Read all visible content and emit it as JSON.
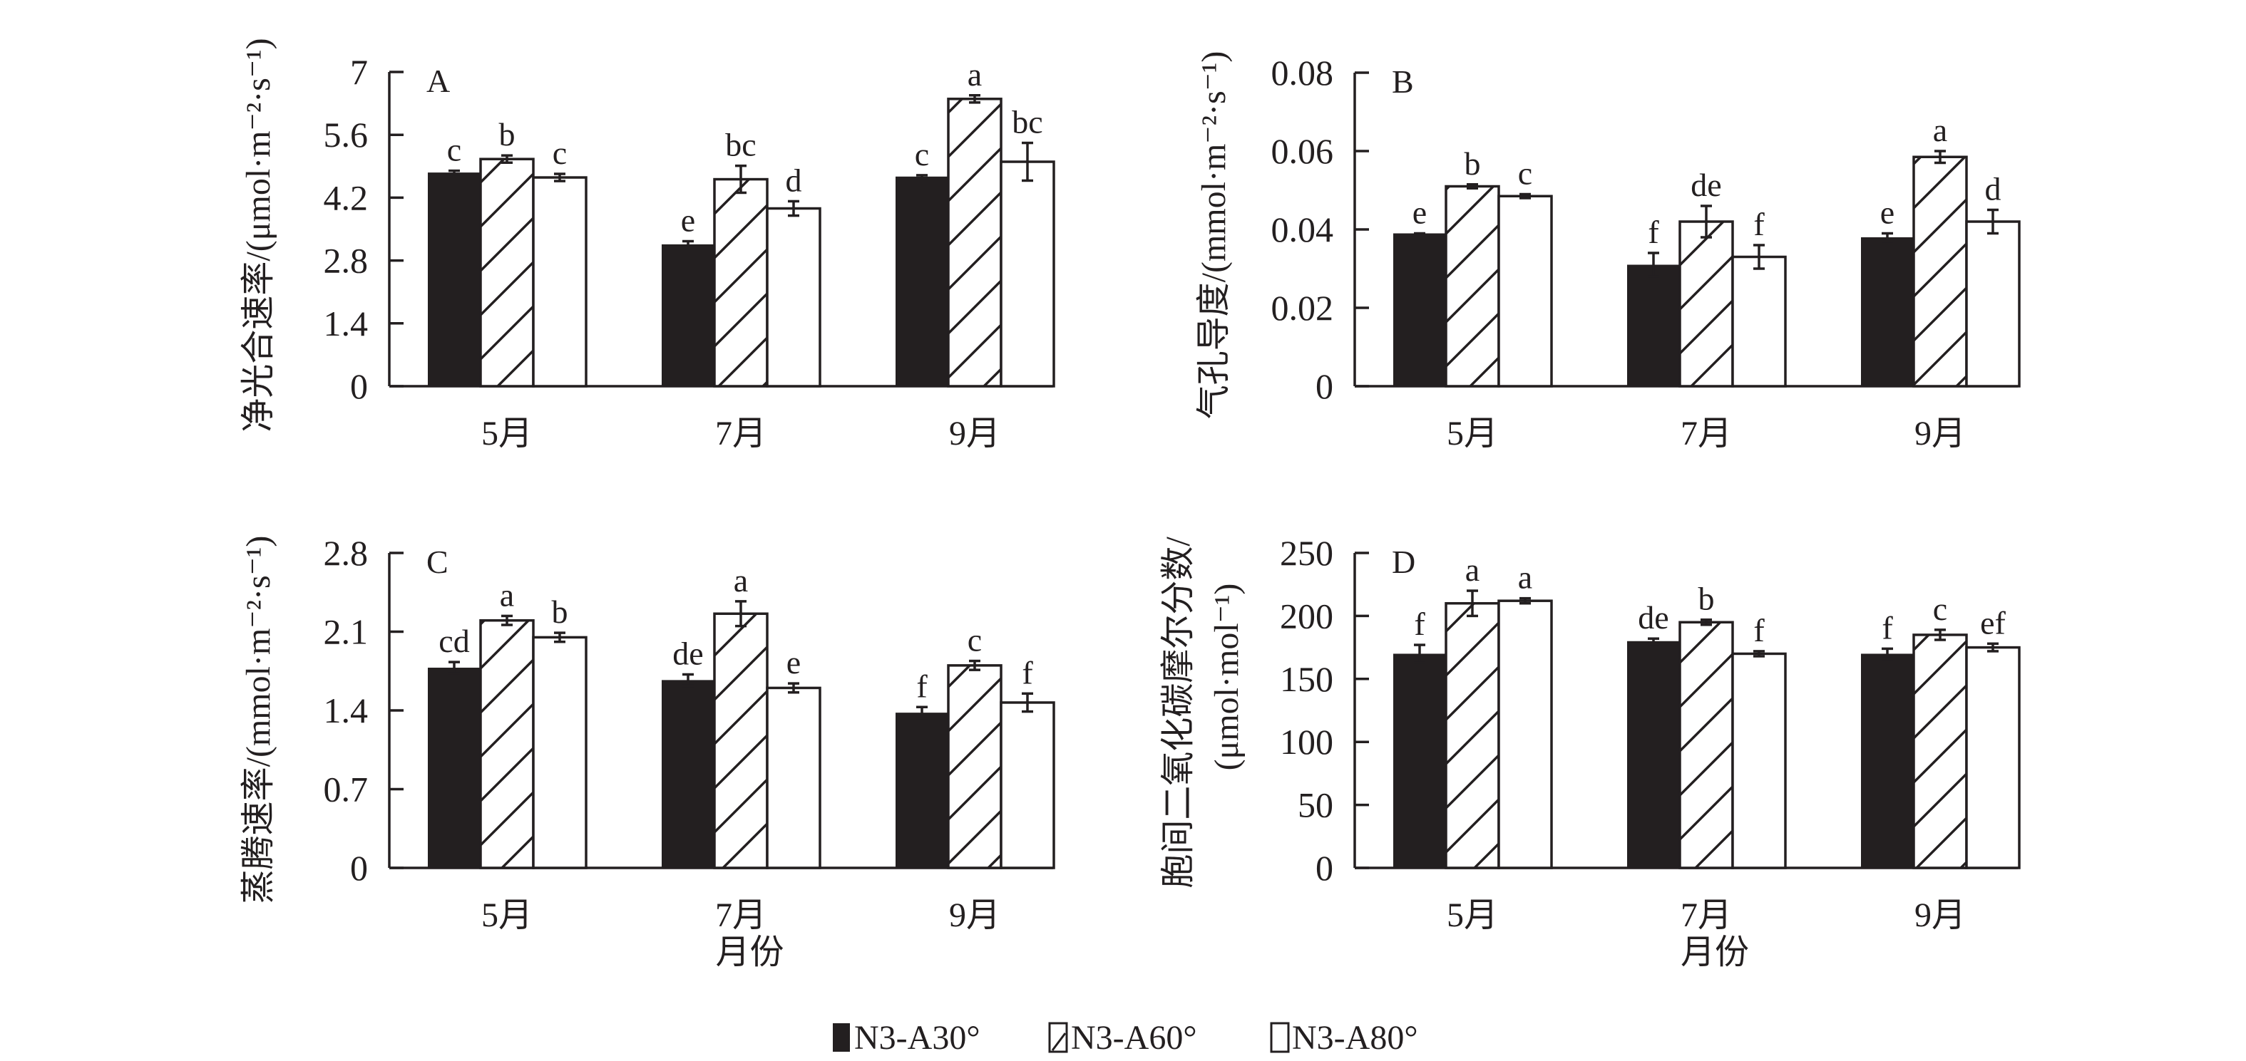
{
  "legend": {
    "items": [
      {
        "label": "N3-A30°",
        "fill": "solid"
      },
      {
        "label": "N3-A60°",
        "fill": "hatch"
      },
      {
        "label": "N3-A80°",
        "fill": "empty"
      }
    ]
  },
  "colors": {
    "ink": "#231f20",
    "background": "#ffffff"
  },
  "chart_data": [
    {
      "type": "bar",
      "panel": "A",
      "categories": [
        "5月",
        "7月",
        "9月"
      ],
      "ylabel": "净光合速率/(μmol·m⁻²·s⁻¹)",
      "xlabel": "",
      "ylim": [
        0,
        7
      ],
      "yticks": [
        "0",
        "1.4",
        "2.8",
        "4.2",
        "5.6",
        "7"
      ],
      "ytick_values": [
        0,
        1.4,
        2.8,
        4.2,
        5.6,
        7
      ],
      "series": [
        {
          "name": "N3-A30°",
          "values": [
            4.76,
            3.16,
            4.67
          ],
          "errors": [
            0.04,
            0.07,
            0.03
          ],
          "sig": [
            "c",
            "e",
            "c"
          ]
        },
        {
          "name": "N3-A60°",
          "values": [
            5.06,
            4.61,
            6.4
          ],
          "errors": [
            0.08,
            0.3,
            0.08
          ],
          "sig": [
            "b",
            "bc",
            "a"
          ]
        },
        {
          "name": "N3-A80°",
          "values": [
            4.65,
            3.96,
            5.0
          ],
          "errors": [
            0.08,
            0.16,
            0.42
          ],
          "sig": [
            "c",
            "d",
            "bc"
          ]
        }
      ]
    },
    {
      "type": "bar",
      "panel": "B",
      "categories": [
        "5月",
        "7月",
        "9月"
      ],
      "ylabel": "气孔导度/(mmol·m⁻²·s⁻¹)",
      "xlabel": "",
      "ylim": [
        0,
        0.08
      ],
      "yticks": [
        "0",
        "0.02",
        "0.04",
        "0.06",
        "0.08"
      ],
      "ytick_values": [
        0,
        0.02,
        0.04,
        0.06,
        0.08
      ],
      "series": [
        {
          "name": "N3-A30°",
          "values": [
            0.039,
            0.031,
            0.038
          ],
          "errors": [
            0.0,
            0.003,
            0.001
          ],
          "sig": [
            "e",
            "f",
            "e"
          ]
        },
        {
          "name": "N3-A60°",
          "values": [
            0.051,
            0.042,
            0.0585
          ],
          "errors": [
            0.0005,
            0.004,
            0.0015
          ],
          "sig": [
            "b",
            "de",
            "a"
          ]
        },
        {
          "name": "N3-A80°",
          "values": [
            0.0485,
            0.033,
            0.042
          ],
          "errors": [
            0.0005,
            0.003,
            0.003
          ],
          "sig": [
            "c",
            "f",
            "d"
          ]
        }
      ]
    },
    {
      "type": "bar",
      "panel": "C",
      "categories": [
        "5月",
        "7月",
        "9月"
      ],
      "ylabel": "蒸腾速率/(mmol·m⁻²·s⁻¹)",
      "xlabel": "月份",
      "ylim": [
        0,
        2.8
      ],
      "yticks": [
        "0",
        "0.7",
        "1.4",
        "2.1",
        "2.8"
      ],
      "ytick_values": [
        0,
        0.7,
        1.4,
        2.1,
        2.8
      ],
      "series": [
        {
          "name": "N3-A30°",
          "values": [
            1.78,
            1.67,
            1.38
          ],
          "errors": [
            0.05,
            0.05,
            0.05
          ],
          "sig": [
            "cd",
            "de",
            "f"
          ]
        },
        {
          "name": "N3-A60°",
          "values": [
            2.2,
            2.26,
            1.8
          ],
          "errors": [
            0.04,
            0.11,
            0.04
          ],
          "sig": [
            "a",
            "a",
            "c"
          ]
        },
        {
          "name": "N3-A80°",
          "values": [
            2.05,
            1.6,
            1.47
          ],
          "errors": [
            0.04,
            0.04,
            0.08
          ],
          "sig": [
            "b",
            "e",
            "f"
          ]
        }
      ]
    },
    {
      "type": "bar",
      "panel": "D",
      "categories": [
        "5月",
        "7月",
        "9月"
      ],
      "ylabel": "胞间二氧化碳摩尔分数/",
      "ylabel_line2": "(μmol·mol⁻¹)",
      "xlabel": "月份",
      "ylim": [
        0,
        250
      ],
      "yticks": [
        "0",
        "50",
        "100",
        "150",
        "200",
        "250"
      ],
      "ytick_values": [
        0,
        50,
        100,
        150,
        200,
        250
      ],
      "series": [
        {
          "name": "N3-A30°",
          "values": [
            170,
            180,
            170
          ],
          "errors": [
            7,
            2,
            4
          ],
          "sig": [
            "f",
            "de",
            "f"
          ]
        },
        {
          "name": "N3-A60°",
          "values": [
            210,
            195,
            185
          ],
          "errors": [
            10,
            2,
            4
          ],
          "sig": [
            "a",
            "b",
            "c"
          ]
        },
        {
          "name": "N3-A80°",
          "values": [
            212,
            170,
            175
          ],
          "errors": [
            2,
            2,
            3
          ],
          "sig": [
            "a",
            "f",
            "ef"
          ]
        }
      ]
    }
  ]
}
